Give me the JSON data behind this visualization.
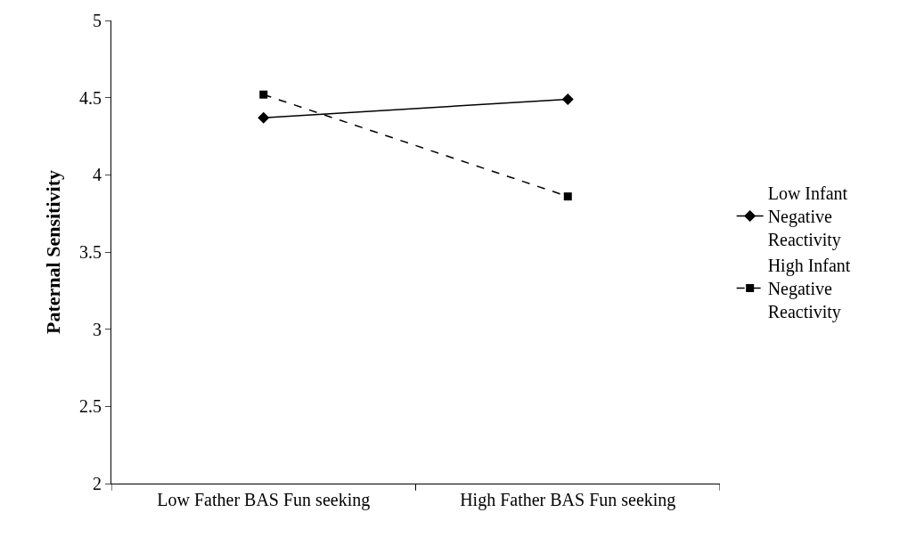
{
  "chart_data": {
    "type": "line",
    "ylabel": "Paternal Sensitivity",
    "categories": [
      "Low Father BAS Fun seeking",
      "High Father BAS Fun seeking"
    ],
    "series": [
      {
        "name": "Low Infant Negative Reactivity",
        "color": "#000000",
        "values": [
          4.37,
          4.49
        ],
        "marker": "diamond",
        "line_style": "solid"
      },
      {
        "name": "High Infant Negative Reactivity",
        "color": "#000000",
        "values": [
          4.52,
          3.86
        ],
        "marker": "square",
        "line_style": "dashed"
      }
    ],
    "ylim": [
      2,
      5
    ],
    "yticks": [
      2,
      2.5,
      3,
      3.5,
      4,
      4.5,
      5
    ],
    "legend": "right"
  }
}
